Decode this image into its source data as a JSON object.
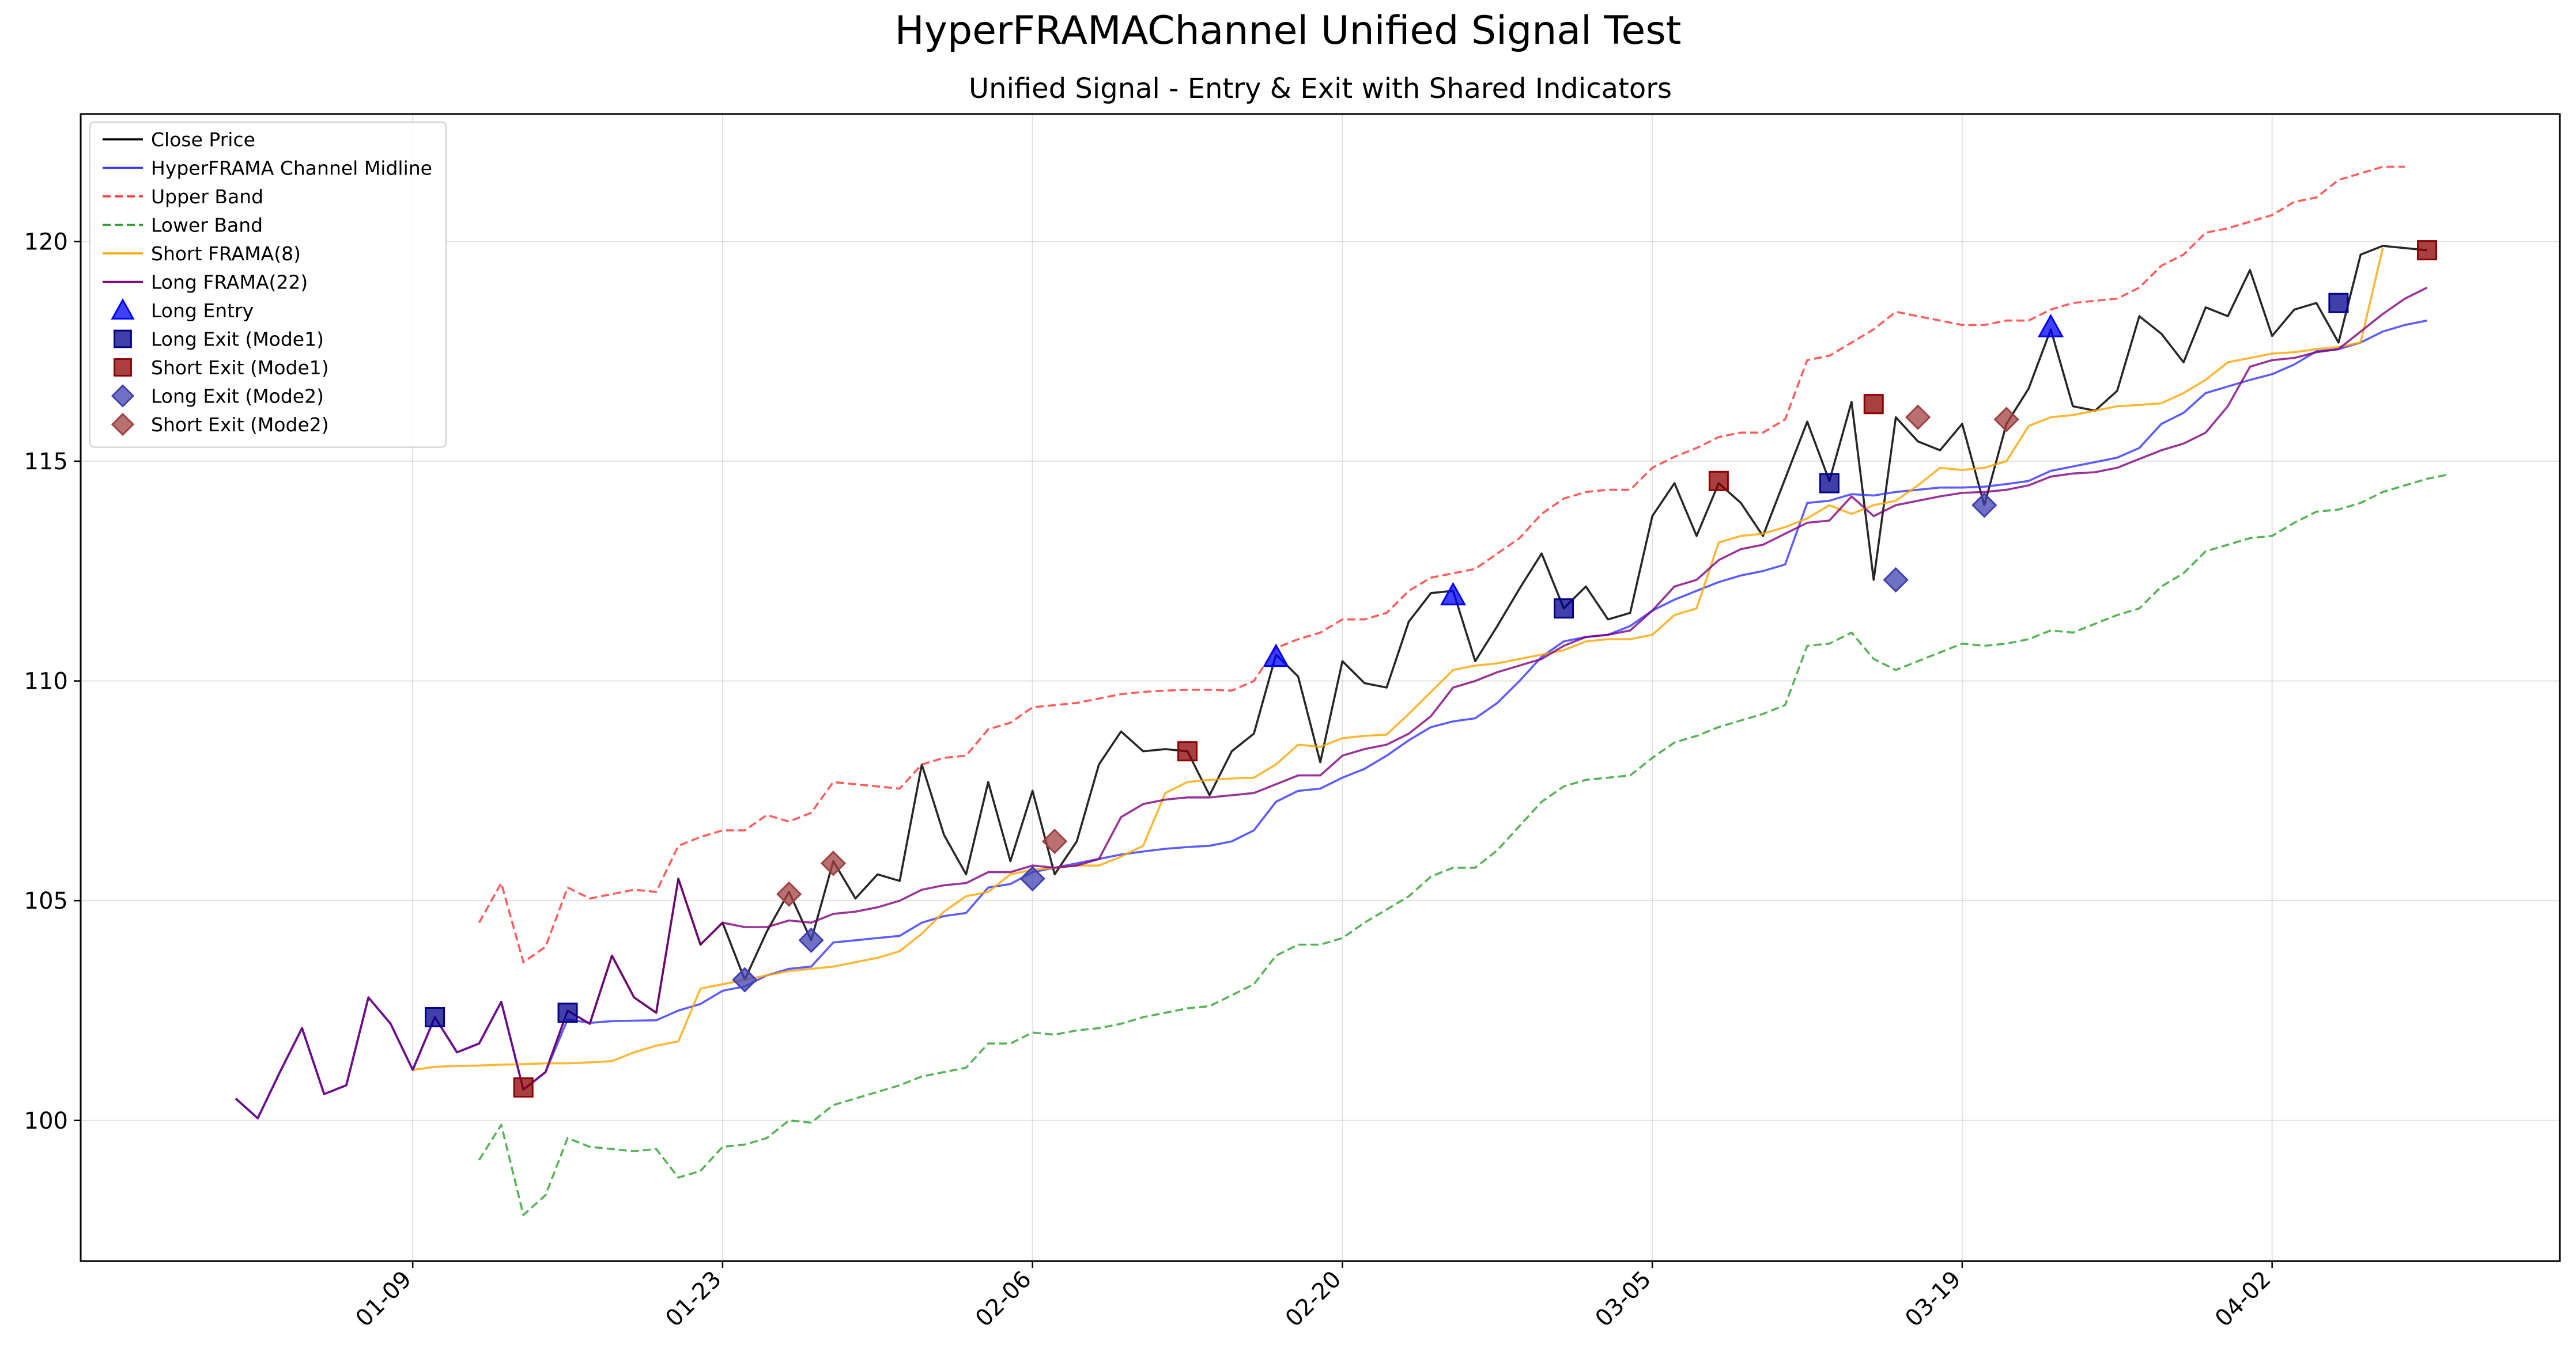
{
  "figure": {
    "suptitle": "HyperFRAMAChannel Unified Signal Test"
  },
  "chart_data": {
    "type": "line",
    "title": "Unified Signal - Entry & Exit with Shared Indicators",
    "xlabel": "",
    "ylabel": "",
    "x_start": "2024-01-01",
    "xlim": [
      "2023-12-25",
      "2024-04-15"
    ],
    "ylim": [
      96.8,
      122.9
    ],
    "xticks": [
      "01-09",
      "01-23",
      "02-06",
      "02-20",
      "03-05",
      "03-19",
      "04-02"
    ],
    "xtick_dates": [
      "2024-01-09",
      "2024-01-23",
      "2024-02-06",
      "2024-02-20",
      "2024-03-05",
      "2024-03-19",
      "2024-04-02"
    ],
    "yticks": [
      100,
      105,
      110,
      115,
      120
    ],
    "grid": true,
    "legend_position": "upper left",
    "series": [
      {
        "name": "Close Price",
        "color": "#000000",
        "style": "solid",
        "start_index": 0,
        "values": [
          100.5,
          100.05,
          101.1,
          102.1,
          100.6,
          100.8,
          102.8,
          102.2,
          101.15,
          102.35,
          101.55,
          101.75,
          102.7,
          100.7,
          101.1,
          102.5,
          102.2,
          103.75,
          102.8,
          102.45,
          105.5,
          104.0,
          104.5,
          103.2,
          104.3,
          105.2,
          104.1,
          105.9,
          105.05,
          105.6,
          105.45,
          108.1,
          106.5,
          105.6,
          107.7,
          105.9,
          107.5,
          105.6,
          106.35,
          108.1,
          108.85,
          108.4,
          108.45,
          108.4,
          107.4,
          108.4,
          108.8,
          110.6,
          110.1,
          108.15,
          110.45,
          109.95,
          109.85,
          111.35,
          112.0,
          112.05,
          110.45,
          111.25,
          112.1,
          112.9,
          111.65,
          112.15,
          111.4,
          111.55,
          113.75,
          114.5,
          113.3,
          114.5,
          114.05,
          113.3,
          114.6,
          115.9,
          114.55,
          116.35,
          112.3,
          116.0,
          115.45,
          115.25,
          115.85,
          114.0,
          115.85,
          116.65,
          118.0,
          116.25,
          116.15,
          116.6,
          118.3,
          117.9,
          117.25,
          118.5,
          118.3,
          119.35,
          117.85,
          118.45,
          118.6,
          117.7,
          119.7,
          119.9,
          119.85,
          119.8
        ]
      },
      {
        "name": "HyperFRAMA Channel Midline",
        "color": "#3333ff",
        "style": "solid",
        "start_index": 0,
        "values": [
          100.5,
          100.05,
          101.1,
          102.1,
          100.6,
          100.8,
          102.8,
          102.2,
          101.15,
          102.35,
          101.55,
          101.75,
          102.7,
          100.7,
          101.1,
          102.3,
          102.22,
          102.26,
          102.27,
          102.28,
          102.5,
          102.65,
          102.95,
          103.05,
          103.3,
          103.45,
          103.5,
          104.05,
          104.1,
          104.15,
          104.2,
          104.5,
          104.65,
          104.72,
          105.3,
          105.38,
          105.65,
          105.75,
          105.85,
          105.95,
          106.05,
          106.12,
          106.18,
          106.22,
          106.25,
          106.35,
          106.6,
          107.25,
          107.5,
          107.55,
          107.8,
          108.0,
          108.3,
          108.65,
          108.95,
          109.08,
          109.15,
          109.5,
          110.0,
          110.55,
          110.9,
          111.0,
          111.05,
          111.25,
          111.6,
          111.85,
          112.05,
          112.25,
          112.4,
          112.5,
          112.65,
          114.05,
          114.1,
          114.25,
          114.22,
          114.3,
          114.35,
          114.4,
          114.4,
          114.42,
          114.48,
          114.55,
          114.78,
          114.88,
          114.98,
          115.08,
          115.3,
          115.85,
          116.1,
          116.55,
          116.7,
          116.85,
          116.98,
          117.2,
          117.5,
          117.55,
          117.7,
          117.95,
          118.1,
          118.2
        ]
      },
      {
        "name": "Upper Band",
        "color": "#ff3333",
        "style": "dashed",
        "start_index": 11,
        "values": [
          104.5,
          105.4,
          103.6,
          103.95,
          105.3,
          105.05,
          105.15,
          105.25,
          105.2,
          106.25,
          106.45,
          106.6,
          106.6,
          106.95,
          106.8,
          107.0,
          107.7,
          107.65,
          107.6,
          107.55,
          108.1,
          108.25,
          108.3,
          108.9,
          109.05,
          109.4,
          109.45,
          109.5,
          109.6,
          109.7,
          109.75,
          109.78,
          109.8,
          109.8,
          109.78,
          110.0,
          110.75,
          110.95,
          111.1,
          111.4,
          111.4,
          111.55,
          112.05,
          112.35,
          112.45,
          112.55,
          112.9,
          113.25,
          113.8,
          114.15,
          114.3,
          114.35,
          114.35,
          114.85,
          115.1,
          115.3,
          115.55,
          115.65,
          115.65,
          115.95,
          117.3,
          117.4,
          117.7,
          118.0,
          118.4,
          118.3,
          118.2,
          118.1,
          118.1,
          118.2,
          118.2,
          118.45,
          118.6,
          118.65,
          118.7,
          118.95,
          119.45,
          119.7,
          120.2,
          120.3,
          120.45,
          120.6,
          120.9,
          121.0,
          121.4,
          121.55,
          121.7,
          121.7
        ]
      },
      {
        "name": "Lower Band",
        "color": "#2ca02c",
        "style": "dashed",
        "start_index": 11,
        "values": [
          99.1,
          99.9,
          97.85,
          98.3,
          99.6,
          99.4,
          99.35,
          99.3,
          99.35,
          98.7,
          98.85,
          99.4,
          99.45,
          99.6,
          100.0,
          99.95,
          100.35,
          100.5,
          100.65,
          100.8,
          101.0,
          101.1,
          101.2,
          101.75,
          101.75,
          102.0,
          101.95,
          102.05,
          102.1,
          102.2,
          102.35,
          102.45,
          102.55,
          102.6,
          102.85,
          103.1,
          103.75,
          104.0,
          104.0,
          104.15,
          104.5,
          104.8,
          105.1,
          105.55,
          105.75,
          105.75,
          106.15,
          106.7,
          107.25,
          107.6,
          107.75,
          107.8,
          107.85,
          108.25,
          108.6,
          108.75,
          108.95,
          109.1,
          109.25,
          109.45,
          110.8,
          110.85,
          111.1,
          110.5,
          110.25,
          110.45,
          110.65,
          110.85,
          110.8,
          110.85,
          110.95,
          111.15,
          111.1,
          111.3,
          111.5,
          111.65,
          112.15,
          112.45,
          112.95,
          113.1,
          113.25,
          113.3,
          113.6,
          113.85,
          113.9,
          114.05,
          114.3,
          114.45,
          114.6,
          114.7
        ]
      },
      {
        "name": "Short FRAMA(8)",
        "color": "#ffa500",
        "style": "solid",
        "start_index": 8,
        "values": [
          101.15,
          101.22,
          101.24,
          101.25,
          101.27,
          101.28,
          101.3,
          101.3,
          101.32,
          101.35,
          101.55,
          101.7,
          101.8,
          103.0,
          103.1,
          103.2,
          103.3,
          103.4,
          103.45,
          103.5,
          103.6,
          103.7,
          103.85,
          104.25,
          104.75,
          105.1,
          105.2,
          105.6,
          105.7,
          105.75,
          105.8,
          105.8,
          106.0,
          106.25,
          107.45,
          107.7,
          107.75,
          107.78,
          107.8,
          108.1,
          108.55,
          108.5,
          108.7,
          108.75,
          108.78,
          109.25,
          109.75,
          110.25,
          110.35,
          110.4,
          110.5,
          110.6,
          110.7,
          110.9,
          110.95,
          110.95,
          111.05,
          111.5,
          111.65,
          113.15,
          113.3,
          113.35,
          113.5,
          113.7,
          114.0,
          113.8,
          114.0,
          114.1,
          114.45,
          114.85,
          114.8,
          114.85,
          115.0,
          115.8,
          116.0,
          116.05,
          116.15,
          116.25,
          116.28,
          116.32,
          116.55,
          116.85,
          117.25,
          117.35,
          117.45,
          117.48,
          117.55,
          117.6,
          117.7,
          119.85
        ]
      },
      {
        "name": "Long FRAMA(22)",
        "color": "#800080",
        "style": "solid",
        "start_index": 0,
        "values": [
          100.5,
          100.05,
          101.1,
          102.1,
          100.6,
          100.8,
          102.8,
          102.2,
          101.15,
          102.35,
          101.55,
          101.75,
          102.7,
          100.7,
          101.1,
          102.5,
          102.2,
          103.75,
          102.8,
          102.45,
          105.5,
          104.0,
          104.5,
          104.4,
          104.4,
          104.55,
          104.5,
          104.7,
          104.75,
          104.85,
          105.0,
          105.25,
          105.35,
          105.4,
          105.65,
          105.65,
          105.8,
          105.75,
          105.8,
          105.95,
          106.9,
          107.2,
          107.3,
          107.35,
          107.35,
          107.4,
          107.45,
          107.65,
          107.85,
          107.85,
          108.3,
          108.45,
          108.55,
          108.8,
          109.2,
          109.85,
          110.0,
          110.2,
          110.35,
          110.5,
          110.8,
          111.0,
          111.05,
          111.15,
          111.6,
          112.15,
          112.3,
          112.75,
          113.0,
          113.1,
          113.35,
          113.6,
          113.65,
          114.2,
          113.75,
          114.0,
          114.1,
          114.2,
          114.28,
          114.3,
          114.35,
          114.45,
          114.65,
          114.72,
          114.75,
          114.85,
          115.05,
          115.25,
          115.4,
          115.65,
          116.25,
          117.15,
          117.3,
          117.35,
          117.48,
          117.55,
          117.95,
          118.35,
          118.7,
          118.95
        ]
      }
    ],
    "markers": [
      {
        "name": "Long Entry",
        "shape": "triangle",
        "color": "#0000ff",
        "points": [
          [
            47,
            110.55
          ],
          [
            55,
            111.95
          ],
          [
            82,
            118.05
          ]
        ]
      },
      {
        "name": "Long Exit (Mode1)",
        "shape": "square",
        "color": "#00008b",
        "points": [
          [
            9,
            102.35
          ],
          [
            15,
            102.45
          ],
          [
            60,
            111.65
          ],
          [
            72,
            114.5
          ],
          [
            95,
            118.6
          ]
        ]
      },
      {
        "name": "Short Exit (Mode1)",
        "shape": "square",
        "color": "#8b0000",
        "points": [
          [
            13,
            100.75
          ],
          [
            43,
            108.4
          ],
          [
            67,
            114.55
          ],
          [
            74,
            116.3
          ],
          [
            99,
            119.8
          ]
        ]
      },
      {
        "name": "Long Exit (Mode2)",
        "shape": "diamond",
        "color": "#4040b0",
        "points": [
          [
            23,
            103.2
          ],
          [
            26,
            104.1
          ],
          [
            36,
            105.5
          ],
          [
            75,
            112.3
          ],
          [
            79,
            114.0
          ]
        ]
      },
      {
        "name": "Short Exit (Mode2)",
        "shape": "diamond",
        "color": "#a04040",
        "points": [
          [
            25,
            105.15
          ],
          [
            27,
            105.85
          ],
          [
            37,
            106.35
          ],
          [
            76,
            116.0
          ],
          [
            80,
            115.95
          ]
        ]
      }
    ]
  }
}
